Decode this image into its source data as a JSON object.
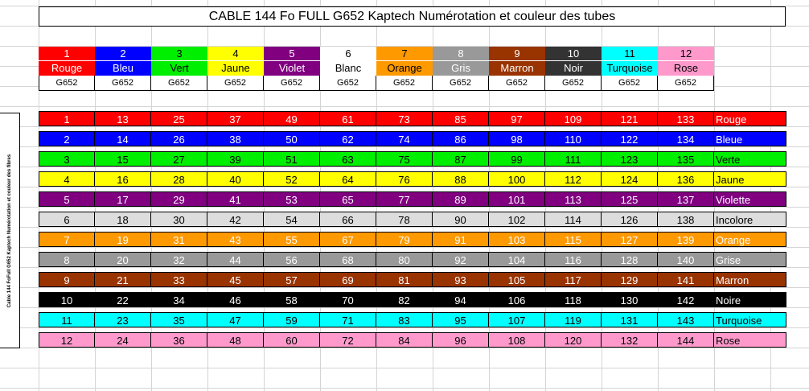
{
  "title": "CABLE 144 Fo FULL G652 Kaptech Numérotation et couleur des tubes",
  "side_label": "Cable 144 FoFull G652 Kaptech Numérotation et couleur des fibres",
  "tubes": [
    {
      "num": "1",
      "name": "Rouge",
      "fiber": "G652",
      "bg": "#ff0000",
      "fg": "#ffffff"
    },
    {
      "num": "2",
      "name": "Bleu",
      "fiber": "G652",
      "bg": "#0000ff",
      "fg": "#ffffff"
    },
    {
      "num": "3",
      "name": "Vert",
      "fiber": "G652",
      "bg": "#00ee00",
      "fg": "#000000"
    },
    {
      "num": "4",
      "name": "Jaune",
      "fiber": "G652",
      "bg": "#ffff00",
      "fg": "#000000"
    },
    {
      "num": "5",
      "name": "Violet",
      "fiber": "G652",
      "bg": "#800080",
      "fg": "#ffffff"
    },
    {
      "num": "6",
      "name": "Blanc",
      "fiber": "G652",
      "bg": "#ffffff",
      "fg": "#000000"
    },
    {
      "num": "7",
      "name": "Orange",
      "fiber": "G652",
      "bg": "#ff9900",
      "fg": "#000000"
    },
    {
      "num": "8",
      "name": "Gris",
      "fiber": "G652",
      "bg": "#999999",
      "fg": "#ffffff"
    },
    {
      "num": "9",
      "name": "Marron",
      "fiber": "G652",
      "bg": "#993300",
      "fg": "#ffffff"
    },
    {
      "num": "10",
      "name": "Noir",
      "fiber": "G652",
      "bg": "#333333",
      "fg": "#ffffff"
    },
    {
      "num": "11",
      "name": "Turquoise",
      "fiber": "G652",
      "bg": "#00ffff",
      "fg": "#000000"
    },
    {
      "num": "12",
      "name": "Rose",
      "fiber": "G652",
      "bg": "#ff99cc",
      "fg": "#000000"
    }
  ],
  "fibers": [
    {
      "label": "Rouge",
      "bg": "#ff0000",
      "fg": "#ffffff",
      "values": [
        "1",
        "13",
        "25",
        "37",
        "49",
        "61",
        "73",
        "85",
        "97",
        "109",
        "121",
        "133"
      ]
    },
    {
      "label": "Bleue",
      "bg": "#0000ff",
      "fg": "#ffffff",
      "values": [
        "2",
        "14",
        "26",
        "38",
        "50",
        "62",
        "74",
        "86",
        "98",
        "110",
        "122",
        "134"
      ]
    },
    {
      "label": "Verte",
      "bg": "#00ee00",
      "fg": "#000000",
      "values": [
        "3",
        "15",
        "27",
        "39",
        "51",
        "63",
        "75",
        "87",
        "99",
        "111",
        "123",
        "135"
      ]
    },
    {
      "label": "Jaune",
      "bg": "#ffff00",
      "fg": "#000000",
      "values": [
        "4",
        "16",
        "28",
        "40",
        "52",
        "64",
        "76",
        "88",
        "100",
        "112",
        "124",
        "136"
      ]
    },
    {
      "label": "Violette",
      "bg": "#800080",
      "fg": "#ffffff",
      "values": [
        "5",
        "17",
        "29",
        "41",
        "53",
        "65",
        "77",
        "89",
        "101",
        "113",
        "125",
        "137"
      ]
    },
    {
      "label": "Incolore",
      "bg": "#dddddd",
      "fg": "#000000",
      "values": [
        "6",
        "18",
        "30",
        "42",
        "54",
        "66",
        "78",
        "90",
        "102",
        "114",
        "126",
        "138"
      ]
    },
    {
      "label": "Orange",
      "bg": "#ff9900",
      "fg": "#ffffff",
      "values": [
        "7",
        "19",
        "31",
        "43",
        "55",
        "67",
        "79",
        "91",
        "103",
        "115",
        "127",
        "139"
      ]
    },
    {
      "label": "Grise",
      "bg": "#999999",
      "fg": "#ffffff",
      "values": [
        "8",
        "20",
        "32",
        "44",
        "56",
        "68",
        "80",
        "92",
        "104",
        "116",
        "128",
        "140"
      ]
    },
    {
      "label": "Marron",
      "bg": "#993300",
      "fg": "#ffffff",
      "values": [
        "9",
        "21",
        "33",
        "45",
        "57",
        "69",
        "81",
        "93",
        "105",
        "117",
        "129",
        "141"
      ]
    },
    {
      "label": "Noire",
      "bg": "#000000",
      "fg": "#ffffff",
      "values": [
        "10",
        "22",
        "34",
        "46",
        "58",
        "70",
        "82",
        "94",
        "106",
        "118",
        "130",
        "142"
      ]
    },
    {
      "label": "Turquoise",
      "bg": "#00ffff",
      "fg": "#000000",
      "values": [
        "11",
        "23",
        "35",
        "47",
        "59",
        "71",
        "83",
        "95",
        "107",
        "119",
        "131",
        "143"
      ]
    },
    {
      "label": "Rose",
      "bg": "#ff99cc",
      "fg": "#000000",
      "values": [
        "12",
        "24",
        "36",
        "48",
        "60",
        "72",
        "84",
        "96",
        "108",
        "120",
        "132",
        "144"
      ]
    }
  ]
}
